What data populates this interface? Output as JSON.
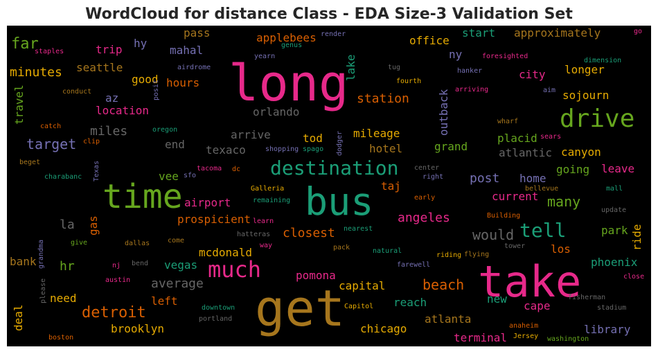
{
  "chart_data": {
    "type": "wordcloud",
    "title": "WordCloud for distance Class - EDA Size-3 Validation Set",
    "words": [
      "long",
      "take",
      "get",
      "bus",
      "time",
      "drive",
      "destination",
      "much",
      "tell",
      "far",
      "minutes",
      "pass",
      "hy",
      "trip",
      "mahal",
      "applebees",
      "office",
      "start",
      "approximately",
      "ny",
      "seattle",
      "good",
      "hours",
      "az",
      "location",
      "station",
      "lake",
      "city",
      "longer",
      "sojourn",
      "orlando",
      "outback",
      "miles",
      "target",
      "end",
      "arrive",
      "tod",
      "mileage",
      "hotel",
      "texaco",
      "placid",
      "atlantic",
      "grand",
      "canyon",
      "travel",
      "going",
      "leave",
      "post",
      "home",
      "vee",
      "airport",
      "taj",
      "current",
      "many",
      "angeles",
      "gas",
      "la",
      "prospicient",
      "closest",
      "would",
      "park",
      "ride",
      "hr",
      "mcdonald",
      "los",
      "bank",
      "vegas",
      "average",
      "pomona",
      "phoenix",
      "beach",
      "capital",
      "need",
      "left",
      "deal",
      "detroit",
      "reach",
      "new",
      "cape",
      "atlanta",
      "brooklyn",
      "chicago",
      "library",
      "terminal",
      "render",
      "go",
      "staples",
      "genus",
      "yearn",
      "foresighted",
      "dimension",
      "airdrome",
      "tug",
      "hanker",
      "fourth",
      "conduct",
      "arriving",
      "aim",
      "posit",
      "catch",
      "oregon",
      "wharf",
      "sears",
      "clip",
      "spago",
      "shopping",
      "dodger",
      "beget",
      "Texas",
      "tacoma",
      "dc",
      "center",
      "charabanc",
      "sfo",
      "right",
      "bellevue",
      "Galleria",
      "early",
      "mall",
      "remaining",
      "update",
      "Building",
      "hatteras",
      "learn",
      "nearest",
      "grandma",
      "give",
      "dallas",
      "come",
      "way",
      "pack",
      "natural",
      "tower",
      "riding",
      "flying",
      "nj",
      "bend",
      "farewell",
      "austin",
      "please",
      "close",
      "fisherman",
      "stadium",
      "downtown",
      "Capitol",
      "portland",
      "anaheim",
      "Jersey",
      "washington",
      "boston"
    ]
  }
}
